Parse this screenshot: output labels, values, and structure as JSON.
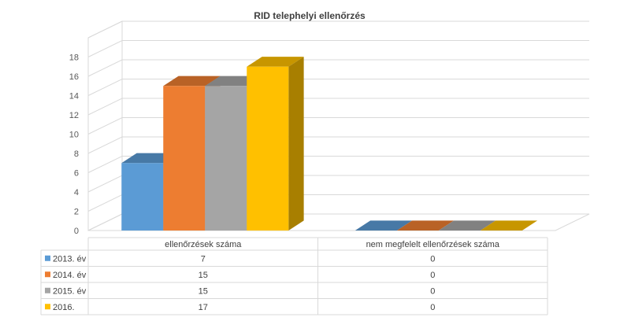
{
  "chart_data": {
    "type": "bar",
    "title": "RID telephelyi ellenőrzés",
    "categories": [
      "ellenőrzések száma",
      "nem megfelelt ellenőrzések száma"
    ],
    "series": [
      {
        "name": "2013. év",
        "values": [
          7,
          0
        ],
        "color": "#5B9BD5"
      },
      {
        "name": "2014. év",
        "values": [
          15,
          0
        ],
        "color": "#ED7D31"
      },
      {
        "name": "2015. év",
        "values": [
          15,
          0
        ],
        "color": "#A5A5A5"
      },
      {
        "name": "2016.",
        "values": [
          17,
          0
        ],
        "color": "#FFC000"
      }
    ],
    "ylim": [
      0,
      18
    ],
    "yticks": [
      0,
      2,
      4,
      6,
      8,
      10,
      12,
      14,
      16,
      18
    ],
    "grid": true,
    "legend": "data-table",
    "data_table": true,
    "three_d": true
  }
}
